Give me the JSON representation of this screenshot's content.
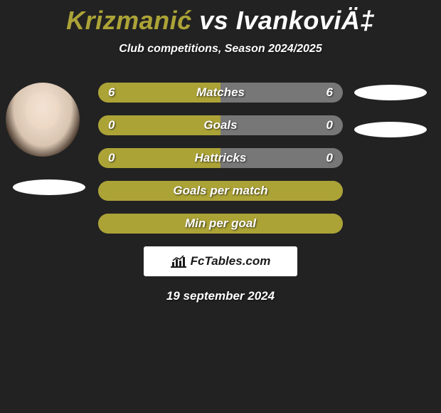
{
  "title": {
    "player1": "Krizmanić",
    "vs": "vs",
    "player2": "IvankoviÄ‡"
  },
  "subtitle": "Club competitions, Season 2024/2025",
  "colors": {
    "accent": "#aca337",
    "gray": "#777777",
    "bg": "#222222",
    "white": "#ffffff"
  },
  "stats": [
    {
      "label": "Matches",
      "left_val": "6",
      "right_val": "6",
      "left_pct": 50,
      "right_pct": 50,
      "left_color": "#aca337",
      "right_color": "#777777"
    },
    {
      "label": "Goals",
      "left_val": "0",
      "right_val": "0",
      "left_pct": 50,
      "right_pct": 50,
      "left_color": "#aca337",
      "right_color": "#777777"
    },
    {
      "label": "Hattricks",
      "left_val": "0",
      "right_val": "0",
      "left_pct": 50,
      "right_pct": 50,
      "left_color": "#aca337",
      "right_color": "#777777"
    },
    {
      "label": "Goals per match",
      "left_val": "",
      "right_val": "",
      "left_pct": 100,
      "right_pct": 0,
      "left_color": "#aca337",
      "right_color": "#777777"
    },
    {
      "label": "Min per goal",
      "left_val": "",
      "right_val": "",
      "left_pct": 100,
      "right_pct": 0,
      "left_color": "#aca337",
      "right_color": "#777777"
    }
  ],
  "brand": "FcTables.com",
  "timestamp": "19 september 2024"
}
